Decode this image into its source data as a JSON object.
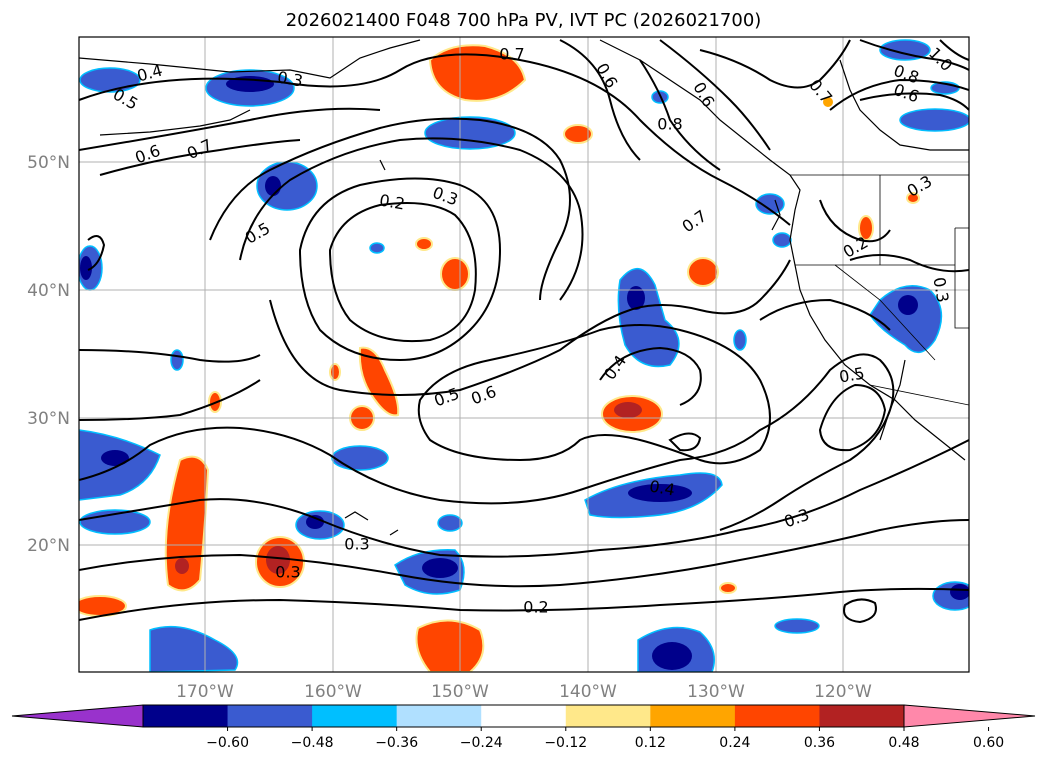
{
  "title": "2026021400 F048 700 hPa PV, IVT PC (2026021700)",
  "lat_ticks": [
    "50°N",
    "40°N",
    "30°N",
    "20°N"
  ],
  "lon_ticks": [
    "170°W",
    "160°W",
    "150°W",
    "140°W",
    "130°W",
    "120°W"
  ],
  "contour_labels": [
    "0.4",
    "0.5",
    "0.3",
    "0.6",
    "0.7",
    "0.7",
    "0.5",
    "0.2",
    "0.3",
    "0.7",
    "0.6",
    "0.6",
    "0.8",
    "1.0",
    "0.8",
    "0.6",
    "0.7",
    "0.3",
    "0.2",
    "0.3",
    "0.4",
    "0.5",
    "0.6",
    "0.5",
    "0.4",
    "0.3",
    "0.3",
    "0.3",
    "0.2"
  ],
  "colorbar": {
    "labels": [
      "−0.60",
      "−0.48",
      "−0.36",
      "−0.24",
      "−0.12",
      "0.12",
      "0.24",
      "0.36",
      "0.48",
      "0.60"
    ],
    "colors": [
      "#9932cc",
      "#00008b",
      "#3a5bd0",
      "#00bfff",
      "#b0e0ff",
      "#ffffff",
      "#ffe88a",
      "#ffa500",
      "#ff4500",
      "#b22222",
      "#ff88aa"
    ]
  }
}
